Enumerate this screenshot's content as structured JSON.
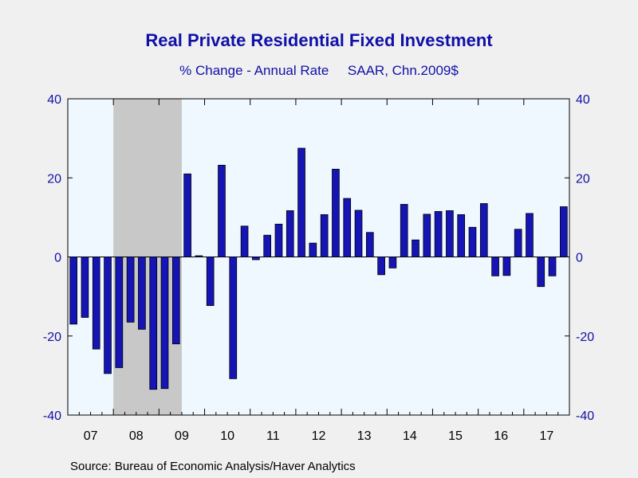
{
  "chart_data": {
    "type": "bar",
    "title": "Real Private Residential Fixed Investment",
    "subtitle": "% Change - Annual Rate     SAAR, Chn.2009$",
    "source": "Source:  Bureau of Economic Analysis/Haver Analytics",
    "ylim": [
      -40,
      40
    ],
    "yticks": [
      -40,
      -20,
      0,
      20,
      40
    ],
    "year_labels": [
      "07",
      "08",
      "09",
      "10",
      "11",
      "12",
      "13",
      "14",
      "15",
      "16",
      "17"
    ],
    "quarters": [
      "2007Q1",
      "2007Q2",
      "2007Q3",
      "2007Q4",
      "2008Q1",
      "2008Q2",
      "2008Q3",
      "2008Q4",
      "2009Q1",
      "2009Q2",
      "2009Q3",
      "2009Q4",
      "2010Q1",
      "2010Q2",
      "2010Q3",
      "2010Q4",
      "2011Q1",
      "2011Q2",
      "2011Q3",
      "2011Q4",
      "2012Q1",
      "2012Q2",
      "2012Q3",
      "2012Q4",
      "2013Q1",
      "2013Q2",
      "2013Q3",
      "2013Q4",
      "2014Q1",
      "2014Q2",
      "2014Q3",
      "2014Q4",
      "2015Q1",
      "2015Q2",
      "2015Q3",
      "2015Q4",
      "2016Q1",
      "2016Q2",
      "2016Q3",
      "2016Q4",
      "2017Q1",
      "2017Q2",
      "2017Q3",
      "2017Q4"
    ],
    "values": [
      -17.0,
      -15.3,
      -23.3,
      -29.5,
      -28.0,
      -16.5,
      -18.3,
      -33.5,
      -33.3,
      -22.0,
      21.0,
      0.3,
      -12.3,
      23.2,
      -30.8,
      7.8,
      -0.7,
      5.5,
      8.3,
      11.7,
      27.5,
      3.5,
      10.7,
      22.2,
      14.8,
      11.8,
      6.2,
      -4.5,
      -2.8,
      13.3,
      4.3,
      10.8,
      11.5,
      11.7,
      10.7,
      7.5,
      13.5,
      -4.8,
      -4.7,
      7.0,
      11.0,
      -7.5,
      -4.8,
      12.7
    ],
    "recession": {
      "start_index": 4,
      "end_index": 9
    },
    "grid": false,
    "colors": {
      "bar": "#1515b5",
      "plot_bg": "#f0f8ff",
      "recession": "#c8c8c8",
      "text": "#1010a8",
      "page_bg": "#f0f0f0"
    }
  }
}
